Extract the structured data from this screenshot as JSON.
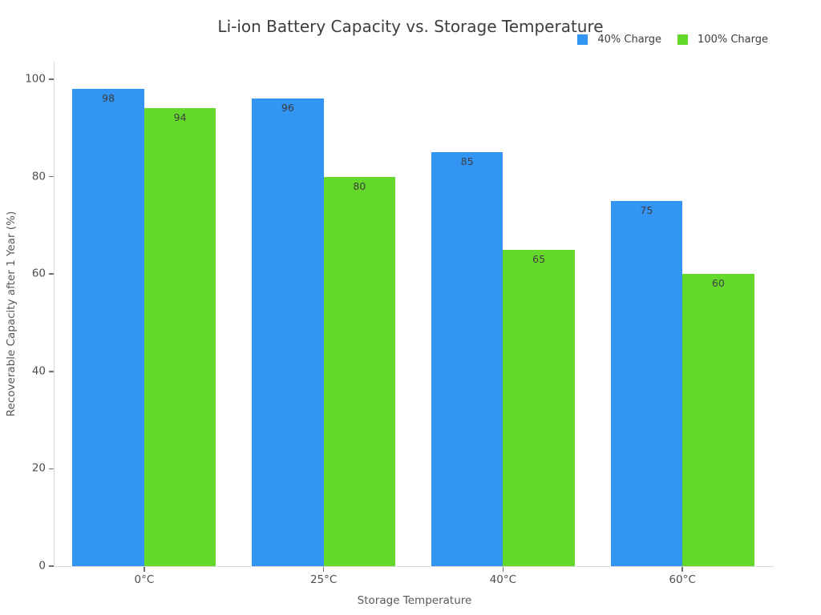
{
  "chart_data": {
    "type": "bar",
    "title": "Li-ion Battery Capacity vs. Storage Temperature",
    "xlabel": "Storage Temperature",
    "ylabel": "Recoverable Capacity after 1 Year (%)",
    "categories": [
      "0°C",
      "25°C",
      "40°C",
      "60°C"
    ],
    "series": [
      {
        "name": "40% Charge",
        "color": "#3295f4",
        "values": [
          98,
          96,
          85,
          75
        ]
      },
      {
        "name": "100% Charge",
        "color": "#64d92b",
        "values": [
          94,
          80,
          65,
          60
        ]
      }
    ],
    "yticks": [
      0,
      20,
      40,
      60,
      80,
      100
    ],
    "ylim": [
      0,
      103.6
    ],
    "grid": false,
    "legend_position": "top-right",
    "bar_value_labels": true,
    "background": "#ffffff",
    "axis_line_color": "#d9d9d9"
  }
}
